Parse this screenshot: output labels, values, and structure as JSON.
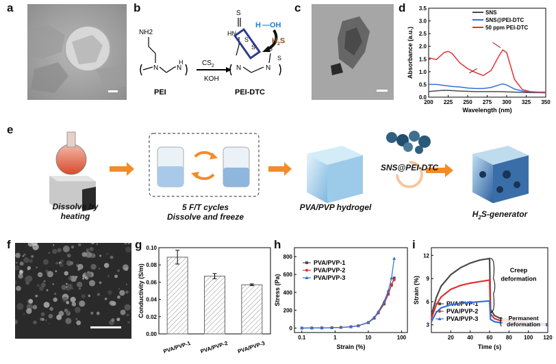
{
  "panel_labels": {
    "a": "a",
    "b": "b",
    "c": "c",
    "d": "d",
    "e": "e",
    "f": "f",
    "g": "g",
    "h": "h",
    "i": "i"
  },
  "panel_b": {
    "nh2": "NH2",
    "n": "N",
    "h": "H",
    "n_right": "N",
    "h_right": "H",
    "pei": "PEI",
    "cs2": "CS",
    "cs2_sub": "2",
    "koh": "KOH",
    "s_top": "S",
    "hn": "HN",
    "s1": "S",
    "s2": "S",
    "s3": "S",
    "s4": "S",
    "h_oh": "H",
    "oh": "OH",
    "h2s": "H",
    "h2s_sub": "2",
    "h2s_s": "S",
    "pei_dtc": "PEI-DTC"
  },
  "panel_e": {
    "step1": [
      "Dissolve by",
      "heating"
    ],
    "step2": [
      "5 F/T cycles",
      "Dissolve and freeze"
    ],
    "step3": "PVA/PVP hydrogel",
    "step4_main": "SNS@PEI-DTC",
    "step5_h": "H",
    "step5_sub": "2",
    "step5_rest": "S-generator"
  },
  "colors": {
    "orange": "#F28C28",
    "red": "#E03030",
    "blue": "#2F6FD6",
    "grey": "#4A4A4A"
  },
  "chart_data": [
    {
      "panel": "d",
      "type": "line",
      "xlabel": "Wavelength (nm)",
      "ylabel": "Absorbance (a.u.)",
      "xlim": [
        200,
        350
      ],
      "ylim": [
        0,
        3.5
      ],
      "xticks": [
        200,
        225,
        250,
        275,
        300,
        325,
        350
      ],
      "yticks": [
        0.0,
        0.5,
        1.0,
        1.5,
        2.0,
        2.5,
        3.0,
        3.5
      ],
      "legend_position": "top-right",
      "series": [
        {
          "name": "SNS",
          "color": "#4A4A4A",
          "x": [
            200,
            210,
            220,
            230,
            240,
            250,
            260,
            270,
            280,
            290,
            300,
            310,
            320,
            330,
            340,
            350
          ],
          "y": [
            0.22,
            0.25,
            0.27,
            0.26,
            0.24,
            0.23,
            0.22,
            0.22,
            0.22,
            0.22,
            0.21,
            0.2,
            0.19,
            0.18,
            0.18,
            0.17
          ]
        },
        {
          "name": "SNS@PEI-DTC",
          "color": "#2F6FD6",
          "x": [
            200,
            210,
            220,
            230,
            240,
            250,
            260,
            270,
            280,
            290,
            295,
            300,
            310,
            320,
            330,
            340,
            350
          ],
          "y": [
            0.5,
            0.5,
            0.46,
            0.42,
            0.4,
            0.36,
            0.34,
            0.34,
            0.38,
            0.48,
            0.52,
            0.48,
            0.32,
            0.24,
            0.2,
            0.19,
            0.18
          ]
        },
        {
          "name": "50 ppm PEI-DTC",
          "color": "#E03030",
          "x": [
            200,
            210,
            220,
            225,
            230,
            240,
            250,
            260,
            270,
            280,
            290,
            295,
            300,
            310,
            320,
            330,
            340,
            350
          ],
          "y": [
            1.55,
            1.48,
            1.76,
            1.8,
            1.72,
            1.35,
            1.12,
            0.97,
            0.85,
            1.05,
            1.62,
            1.86,
            1.75,
            0.7,
            0.3,
            0.22,
            0.2,
            0.2
          ]
        }
      ]
    },
    {
      "panel": "g",
      "type": "bar",
      "xlabel": "",
      "ylabel": "Conductivity (S/m)",
      "categories": [
        "PVA/PVP-1",
        "PVA/PVP-2",
        "PVA/PVP-3"
      ],
      "values": [
        0.089,
        0.067,
        0.057
      ],
      "errors": [
        0.008,
        0.003,
        0.001
      ],
      "ylim": [
        0,
        0.1
      ],
      "yticks": [
        "0.00",
        "0.02",
        "0.04",
        "0.06",
        "0.08",
        "0.10"
      ]
    },
    {
      "panel": "h",
      "type": "line",
      "xlabel": "Strain (%)",
      "ylabel": "Stress (Pa)",
      "xscale": "log",
      "xlim": [
        0.06,
        150
      ],
      "ylim": [
        -50,
        900
      ],
      "xticks": [
        0.1,
        1,
        10,
        100
      ],
      "xtick_labels": [
        "0.1",
        "1",
        "10",
        "100"
      ],
      "yticks": [
        0,
        200,
        400,
        600,
        800
      ],
      "legend_position": "top-left",
      "series": [
        {
          "name": "PVA/PVP-1",
          "color": "#4A4A4A",
          "marker": "square",
          "x": [
            0.1,
            0.2,
            0.4,
            0.8,
            1.5,
            3,
            5,
            10,
            15,
            20,
            30,
            40,
            50,
            60
          ],
          "y": [
            0,
            1,
            2,
            4,
            7,
            14,
            25,
            60,
            110,
            170,
            270,
            380,
            480,
            560
          ]
        },
        {
          "name": "PVA/PVP-2",
          "color": "#E03030",
          "marker": "circle",
          "x": [
            0.1,
            0.2,
            0.4,
            0.8,
            1.5,
            3,
            5,
            10,
            15,
            20,
            30,
            40,
            50,
            60
          ],
          "y": [
            0,
            1,
            2,
            4,
            7,
            14,
            25,
            62,
            115,
            175,
            280,
            390,
            490,
            540
          ]
        },
        {
          "name": "PVA/PVP-3",
          "color": "#2F6FD6",
          "marker": "triangle",
          "x": [
            0.1,
            0.2,
            0.4,
            0.8,
            1.5,
            3,
            5,
            10,
            15,
            20,
            30,
            40,
            50,
            60
          ],
          "y": [
            0,
            1,
            2,
            4,
            7,
            15,
            27,
            65,
            120,
            185,
            300,
            420,
            560,
            780
          ]
        }
      ]
    },
    {
      "panel": "i",
      "type": "line",
      "xlabel": "Time (s)",
      "ylabel": "Strain (%)",
      "xlim": [
        0,
        120
      ],
      "ylim": [
        2,
        13
      ],
      "xticks": [
        20,
        40,
        60,
        80,
        100,
        120
      ],
      "yticks": [
        3,
        6,
        9,
        12
      ],
      "legend_position": "bottom-left",
      "annotations": [
        "Creep",
        "deformation",
        "Permanent",
        "deformation"
      ],
      "series": [
        {
          "name": "PVA/PVP-1",
          "color": "#4A4A4A",
          "marker": "square",
          "x": [
            0,
            5,
            10,
            20,
            30,
            40,
            50,
            60,
            61,
            65,
            70,
            80,
            90,
            100,
            110,
            120
          ],
          "y": [
            4.2,
            6.5,
            8.0,
            9.5,
            10.4,
            11.0,
            11.4,
            11.6,
            5.0,
            4.2,
            3.9,
            3.6,
            3.4,
            3.3,
            3.2,
            3.1
          ]
        },
        {
          "name": "PVA/PVP-2",
          "color": "#E03030",
          "marker": "circle",
          "x": [
            0,
            5,
            10,
            20,
            30,
            40,
            50,
            60,
            61,
            65,
            70,
            80,
            90,
            100,
            110,
            120
          ],
          "y": [
            3.8,
            5.6,
            6.6,
            7.6,
            8.1,
            8.4,
            8.6,
            8.8,
            4.4,
            3.8,
            3.6,
            3.4,
            3.3,
            3.2,
            3.1,
            3.0
          ]
        },
        {
          "name": "PVA/PVP-3",
          "color": "#2F6FD6",
          "marker": "triangle",
          "x": [
            0,
            5,
            10,
            20,
            30,
            40,
            50,
            60,
            61,
            65,
            70,
            80,
            90,
            100,
            110,
            120
          ],
          "y": [
            3.4,
            4.6,
            5.2,
            5.6,
            5.8,
            5.9,
            6.0,
            6.1,
            3.7,
            3.4,
            3.3,
            3.2,
            3.1,
            3.0,
            3.0,
            2.9
          ]
        }
      ]
    }
  ]
}
